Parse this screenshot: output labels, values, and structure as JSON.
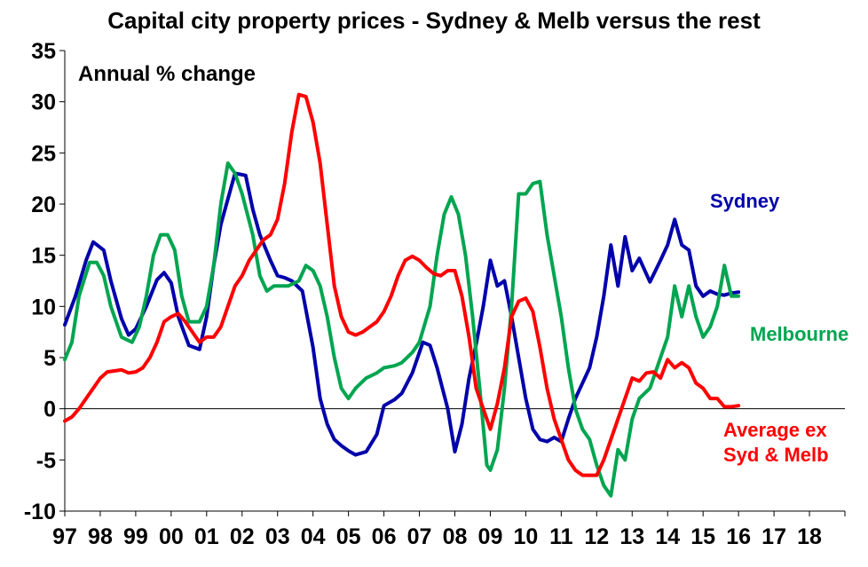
{
  "title": "Capital city property prices - Sydney & Melb versus the rest",
  "chart_data": {
    "type": "line",
    "title": "Capital city property prices - Sydney & Melb versus the rest",
    "subtitle": "Annual % change",
    "xlabel": "",
    "ylabel": "",
    "xlim": [
      1997,
      2019
    ],
    "ylim": [
      -10,
      35
    ],
    "yticks": [
      -10,
      -5,
      0,
      5,
      10,
      15,
      20,
      25,
      30,
      35
    ],
    "xtick_labels": [
      "97",
      "98",
      "99",
      "00",
      "01",
      "02",
      "03",
      "04",
      "05",
      "06",
      "07",
      "08",
      "09",
      "10",
      "11",
      "12",
      "13",
      "14",
      "15",
      "16",
      "17",
      "18"
    ],
    "series": [
      {
        "name": "Sydney",
        "color": "#0000AA",
        "x": [
          1997.0,
          1997.3,
          1997.6,
          1997.8,
          1998.1,
          1998.3,
          1998.6,
          1998.8,
          1999.0,
          1999.3,
          1999.6,
          1999.8,
          2000.0,
          2000.2,
          2000.5,
          2000.8,
          2001.0,
          2001.2,
          2001.4,
          2001.6,
          2001.8,
          2002.1,
          2002.3,
          2002.5,
          2002.8,
          2003.0,
          2003.2,
          2003.4,
          2003.7,
          2004.0,
          2004.2,
          2004.4,
          2004.6,
          2004.8,
          2005.0,
          2005.2,
          2005.5,
          2005.8,
          2006.0,
          2006.3,
          2006.5,
          2006.8,
          2007.1,
          2007.3,
          2007.5,
          2007.8,
          2008.0,
          2008.2,
          2008.4,
          2008.6,
          2008.8,
          2009.0,
          2009.2,
          2009.4,
          2009.6,
          2009.8,
          2010.0,
          2010.2,
          2010.4,
          2010.6,
          2010.8,
          2011.0,
          2011.2,
          2011.4,
          2011.6,
          2011.8,
          2012.0,
          2012.2,
          2012.4,
          2012.6,
          2012.8,
          2013.0,
          2013.2,
          2013.5,
          2013.8,
          2014.0,
          2014.2,
          2014.4,
          2014.6,
          2014.8,
          2015.0,
          2015.2,
          2015.4,
          2015.6,
          2015.8,
          2016.0
        ],
        "values": [
          8.2,
          11,
          14.5,
          16.3,
          15.5,
          12.5,
          8.8,
          7.2,
          7.8,
          10,
          12.6,
          13.3,
          12.3,
          9,
          6.2,
          5.8,
          9,
          14,
          18,
          20.5,
          23,
          22.8,
          19.5,
          17,
          14.5,
          13,
          12.8,
          12.5,
          11.5,
          6,
          1,
          -1.5,
          -3,
          -3.6,
          -4.1,
          -4.5,
          -4.2,
          -2.5,
          0.3,
          0.9,
          1.5,
          3.5,
          6.5,
          6.2,
          4,
          0,
          -4.2,
          -1.5,
          3,
          6.3,
          10,
          14.5,
          12,
          12.5,
          9,
          5,
          1,
          -2,
          -3,
          -3.2,
          -2.8,
          -3.2,
          -1,
          1,
          2.5,
          4,
          7,
          11,
          16,
          12,
          16.8,
          13.5,
          14.7,
          12.4,
          14.5,
          16,
          18.5,
          16,
          15.5,
          12,
          11,
          11.5,
          11.2,
          11.1,
          11.3,
          11.4
        ]
      },
      {
        "name": "Melbourne",
        "color": "#00A550",
        "x": [
          1997.0,
          1997.2,
          1997.4,
          1997.7,
          1997.9,
          1998.1,
          1998.3,
          1998.6,
          1998.9,
          1999.1,
          1999.3,
          1999.5,
          1999.7,
          1999.9,
          2000.1,
          2000.3,
          2000.5,
          2000.8,
          2001.0,
          2001.2,
          2001.4,
          2001.6,
          2001.8,
          2002.0,
          2002.3,
          2002.5,
          2002.7,
          2002.9,
          2003.1,
          2003.3,
          2003.6,
          2003.8,
          2004.0,
          2004.2,
          2004.4,
          2004.6,
          2004.8,
          2005.0,
          2005.2,
          2005.5,
          2005.8,
          2006.0,
          2006.3,
          2006.5,
          2006.8,
          2007.0,
          2007.3,
          2007.5,
          2007.7,
          2007.9,
          2008.1,
          2008.3,
          2008.5,
          2008.7,
          2008.9,
          2009.0,
          2009.2,
          2009.4,
          2009.6,
          2009.8,
          2010.0,
          2010.2,
          2010.4,
          2010.6,
          2010.8,
          2011.0,
          2011.2,
          2011.4,
          2011.6,
          2011.8,
          2012.0,
          2012.2,
          2012.4,
          2012.6,
          2012.8,
          2013.0,
          2013.2,
          2013.5,
          2013.8,
          2014.0,
          2014.2,
          2014.4,
          2014.6,
          2014.8,
          2015.0,
          2015.2,
          2015.4,
          2015.6,
          2015.8,
          2016.0
        ],
        "values": [
          4.8,
          6.5,
          11,
          14.3,
          14.3,
          13,
          10,
          7,
          6.5,
          8,
          11,
          15,
          17,
          17,
          15.5,
          11,
          8.5,
          8.5,
          10,
          14,
          20,
          24,
          23,
          21,
          17,
          13,
          11.5,
          12,
          12,
          12,
          12.5,
          14,
          13.5,
          12,
          9,
          5,
          2,
          1,
          2,
          3,
          3.5,
          4,
          4.2,
          4.5,
          5.5,
          6.5,
          10,
          15,
          19,
          20.7,
          19,
          15,
          9,
          2,
          -5.5,
          -6,
          -4,
          2,
          10,
          21,
          21,
          22,
          22.2,
          17,
          13,
          9,
          4,
          0,
          -2,
          -3,
          -5.5,
          -7.5,
          -8.5,
          -4,
          -5,
          -1,
          1,
          2,
          5,
          7,
          12,
          9,
          12,
          9,
          7,
          8,
          10,
          14,
          11,
          11
        ]
      },
      {
        "name": "Average ex Syd & Melb",
        "color": "#FF0000",
        "x": [
          1997.0,
          1997.2,
          1997.4,
          1997.6,
          1997.8,
          1998.0,
          1998.2,
          1998.4,
          1998.6,
          1998.8,
          1999.0,
          1999.2,
          1999.4,
          1999.6,
          1999.8,
          2000.0,
          2000.2,
          2000.4,
          2000.6,
          2000.8,
          2001.0,
          2001.2,
          2001.4,
          2001.6,
          2001.8,
          2002.0,
          2002.2,
          2002.4,
          2002.6,
          2002.8,
          2003.0,
          2003.2,
          2003.4,
          2003.6,
          2003.8,
          2004.0,
          2004.2,
          2004.4,
          2004.6,
          2004.8,
          2005.0,
          2005.2,
          2005.4,
          2005.6,
          2005.8,
          2006.0,
          2006.2,
          2006.4,
          2006.6,
          2006.8,
          2007.0,
          2007.2,
          2007.4,
          2007.6,
          2007.8,
          2008.0,
          2008.2,
          2008.4,
          2008.6,
          2008.8,
          2009.0,
          2009.2,
          2009.4,
          2009.6,
          2009.8,
          2010.0,
          2010.2,
          2010.4,
          2010.6,
          2010.8,
          2011.0,
          2011.2,
          2011.4,
          2011.6,
          2011.8,
          2012.0,
          2012.2,
          2012.4,
          2012.6,
          2012.8,
          2013.0,
          2013.2,
          2013.4,
          2013.6,
          2013.8,
          2014.0,
          2014.2,
          2014.4,
          2014.6,
          2014.8,
          2015.0,
          2015.2,
          2015.4,
          2015.6,
          2015.8,
          2016.0
        ],
        "values": [
          -1.2,
          -0.8,
          0,
          1,
          2,
          3,
          3.6,
          3.7,
          3.8,
          3.5,
          3.6,
          4,
          5,
          6.5,
          8.5,
          9,
          9.3,
          8.5,
          7.5,
          6.5,
          7,
          7,
          8,
          10,
          12,
          13,
          14.5,
          15.5,
          16.5,
          17,
          18.5,
          22,
          27,
          30.7,
          30.5,
          28,
          24,
          18,
          12,
          9,
          7.5,
          7.2,
          7.5,
          8,
          8.5,
          9.5,
          11,
          13,
          14.5,
          14.9,
          14.5,
          13.8,
          13.2,
          13,
          13.5,
          13.5,
          11,
          7,
          2,
          0,
          -2,
          0.5,
          4,
          9,
          10.5,
          10.8,
          9.5,
          6,
          2,
          -1,
          -3,
          -5,
          -6,
          -6.5,
          -6.5,
          -6.5,
          -5,
          -3,
          -1,
          1,
          3,
          2.7,
          3.5,
          3.6,
          3,
          4.8,
          4,
          4.5,
          4,
          2.5,
          2,
          1,
          1,
          0.2,
          0.2,
          0.3
        ]
      }
    ],
    "series_labels": {
      "sydney": "Sydney",
      "melbourne": "Melbourne",
      "rest_line1": "Average ex",
      "rest_line2": "Syd & Melb"
    }
  }
}
